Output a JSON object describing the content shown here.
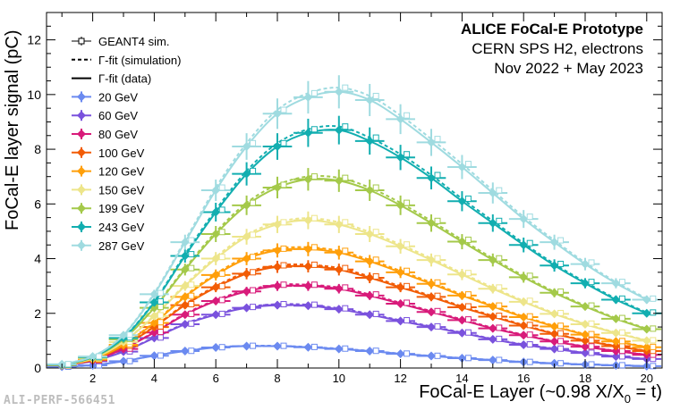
{
  "footer_id": "ALI-PERF-566451",
  "chart_data": {
    "type": "line",
    "title_lines": [
      "ALICE FoCal-E Prototype",
      "CERN SPS H2, electrons",
      "Nov 2022 + May 2023"
    ],
    "xlabel_main": "FoCal-E Layer (~0.98 X/X",
    "xlabel_sub": "0",
    "xlabel_tail": " = t)",
    "ylabel": "FoCal-E layer signal (pC)",
    "xlim": [
      0.5,
      20.5
    ],
    "ylim": [
      0,
      13
    ],
    "xticks": [
      2,
      4,
      6,
      8,
      10,
      12,
      14,
      16,
      18,
      20
    ],
    "yticks": [
      0,
      2,
      4,
      6,
      8,
      10,
      12
    ],
    "x_layers": [
      1,
      2,
      3,
      4,
      5,
      6,
      7,
      8,
      9,
      10,
      11,
      12,
      13,
      14,
      15,
      16,
      17,
      18,
      19,
      20
    ],
    "legend_placement": "top-left",
    "legend_styles": [
      {
        "label": "GEANT4 sim.",
        "style": "sim"
      },
      {
        "label": "Γ-fit (simulation)",
        "style": "dashed"
      },
      {
        "label": "Γ-fit (data)",
        "style": "solid"
      }
    ],
    "series": [
      {
        "name": "20 GeV",
        "color": "#6b8af0",
        "values": [
          0.05,
          0.1,
          0.25,
          0.45,
          0.62,
          0.75,
          0.8,
          0.8,
          0.76,
          0.7,
          0.62,
          0.52,
          0.44,
          0.36,
          0.29,
          0.22,
          0.17,
          0.13,
          0.1,
          0.07
        ]
      },
      {
        "name": "60 GeV",
        "color": "#7a52dd",
        "values": [
          0.1,
          0.25,
          0.6,
          1.1,
          1.6,
          1.95,
          2.2,
          2.3,
          2.28,
          2.15,
          1.95,
          1.72,
          1.5,
          1.28,
          1.05,
          0.85,
          0.7,
          0.55,
          0.42,
          0.33
        ]
      },
      {
        "name": "80 GeV",
        "color": "#d81b7a",
        "values": [
          0.1,
          0.28,
          0.7,
          1.3,
          1.95,
          2.45,
          2.8,
          3.0,
          3.0,
          2.9,
          2.65,
          2.35,
          2.05,
          1.75,
          1.45,
          1.2,
          0.97,
          0.78,
          0.62,
          0.48
        ]
      },
      {
        "name": "100 GeV",
        "color": "#f25c05",
        "values": [
          0.1,
          0.3,
          0.8,
          1.5,
          2.3,
          2.95,
          3.45,
          3.7,
          3.72,
          3.6,
          3.3,
          2.95,
          2.6,
          2.22,
          1.88,
          1.55,
          1.25,
          1.0,
          0.8,
          0.62
        ]
      },
      {
        "name": "120 GeV",
        "color": "#ff9f0a",
        "values": [
          0.1,
          0.32,
          0.85,
          1.65,
          2.6,
          3.4,
          4.0,
          4.3,
          4.35,
          4.22,
          3.9,
          3.5,
          3.08,
          2.65,
          2.25,
          1.86,
          1.52,
          1.22,
          0.97,
          0.76
        ]
      },
      {
        "name": "150 GeV",
        "color": "#ede58a",
        "values": [
          0.12,
          0.35,
          0.95,
          1.9,
          3.0,
          4.0,
          4.8,
          5.25,
          5.4,
          5.25,
          4.9,
          4.45,
          3.95,
          3.42,
          2.9,
          2.42,
          1.98,
          1.6,
          1.28,
          1.0
        ]
      },
      {
        "name": "199 GeV",
        "color": "#a4c94a",
        "values": [
          0.12,
          0.38,
          1.05,
          2.2,
          3.6,
          4.9,
          5.95,
          6.6,
          6.9,
          6.85,
          6.5,
          5.95,
          5.3,
          4.62,
          3.95,
          3.32,
          2.75,
          2.25,
          1.8,
          1.42
        ]
      },
      {
        "name": "243 GeV",
        "color": "#12aeb0",
        "values": [
          0.12,
          0.4,
          1.1,
          2.4,
          4.1,
          5.7,
          7.1,
          8.1,
          8.6,
          8.7,
          8.3,
          7.7,
          6.95,
          6.1,
          5.3,
          4.5,
          3.75,
          3.1,
          2.5,
          2.0
        ]
      },
      {
        "name": "287 GeV",
        "color": "#9fdbe0",
        "values": [
          0.14,
          0.42,
          1.2,
          2.7,
          4.6,
          6.5,
          8.1,
          9.3,
          9.9,
          10.1,
          9.8,
          9.1,
          8.25,
          7.35,
          6.4,
          5.45,
          4.6,
          3.8,
          3.1,
          2.5
        ]
      }
    ]
  }
}
